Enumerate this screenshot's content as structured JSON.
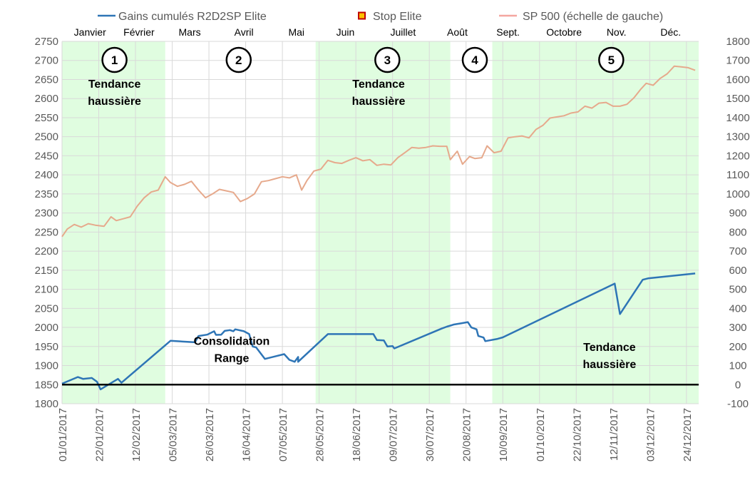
{
  "chart_data": {
    "type": "line",
    "legend": {
      "placement": "top",
      "items": [
        {
          "label": "Gains cumulés R2D2SP Elite",
          "color": "#2e75b6",
          "marker": "line"
        },
        {
          "label": "Stop Elite",
          "color": "#c00000",
          "marker": "square",
          "fill": "#ffc000"
        },
        {
          "label": "SP 500 (échelle de gauche)",
          "color": "#f4a6a0",
          "marker": "line"
        }
      ]
    },
    "y_left": {
      "min": 1800,
      "max": 2750,
      "ticks": [
        "1800",
        "1850",
        "1900",
        "1950",
        "2000",
        "2050",
        "2100",
        "2150",
        "2200",
        "2250",
        "2300",
        "2350",
        "2400",
        "2450",
        "2500",
        "2550",
        "2600",
        "2650",
        "2700",
        "2750"
      ]
    },
    "y_right": {
      "min": -100,
      "max": 1800,
      "ticks": [
        "-100",
        "0",
        "100",
        "200",
        "300",
        "400",
        "500",
        "600",
        "700",
        "800",
        "900",
        "1000",
        "1100",
        "1200",
        "1300",
        "1400",
        "1500",
        "1600",
        "1700",
        "1800"
      ]
    },
    "x_ticks": [
      "01/01/2017",
      "22/01/2017",
      "12/02/2017",
      "05/03/2017",
      "26/03/2017",
      "16/04/2017",
      "07/05/2017",
      "28/05/2017",
      "18/06/2017",
      "09/07/2017",
      "30/07/2017",
      "20/08/2017",
      "10/09/2017",
      "01/10/2017",
      "22/10/2017",
      "12/11/2017",
      "03/12/2017",
      "24/12/2017"
    ],
    "x_range": [
      "2017-01-01",
      "2017-12-31"
    ],
    "months": [
      {
        "label": "Janvier",
        "date": "2017-01-17"
      },
      {
        "label": "Février",
        "date": "2017-02-14"
      },
      {
        "label": "Mars",
        "date": "2017-03-15"
      },
      {
        "label": "Avril",
        "date": "2017-04-15"
      },
      {
        "label": "Mai",
        "date": "2017-05-15"
      },
      {
        "label": "Juin",
        "date": "2017-06-12"
      },
      {
        "label": "Juillet",
        "date": "2017-07-15"
      },
      {
        "label": "Août",
        "date": "2017-08-15"
      },
      {
        "label": "Sept.",
        "date": "2017-09-13"
      },
      {
        "label": "Octobre",
        "date": "2017-10-15"
      },
      {
        "label": "Nov.",
        "date": "2017-11-14"
      },
      {
        "label": "Déc.",
        "date": "2017-12-15"
      }
    ],
    "bands": [
      {
        "name": "1",
        "start": "2017-01-01",
        "end": "2017-03-01",
        "color": "#e0fde0"
      },
      {
        "name": "3",
        "start": "2017-05-26",
        "end": "2017-08-11",
        "color": "#e0fde0"
      },
      {
        "name": "5",
        "start": "2017-09-04",
        "end": "2017-12-31",
        "color": "#e0fde0"
      }
    ],
    "phases": [
      {
        "num": "1",
        "date": "2017-01-31"
      },
      {
        "num": "2",
        "date": "2017-04-12"
      },
      {
        "num": "3",
        "date": "2017-07-06"
      },
      {
        "num": "4",
        "date": "2017-08-25"
      },
      {
        "num": "5",
        "date": "2017-11-11"
      }
    ],
    "annotations": [
      {
        "lines": [
          "Tendance",
          "haussière"
        ],
        "date": "2017-01-31",
        "y": 2628
      },
      {
        "lines": [
          "Consolidation",
          "Range"
        ],
        "date": "2017-04-08",
        "y": 1954
      },
      {
        "lines": [
          "Tendance",
          "haussière"
        ],
        "date": "2017-07-01",
        "y": 2628
      },
      {
        "lines": [
          "Tendance",
          "haussière"
        ],
        "date": "2017-11-10",
        "y": 1938
      }
    ],
    "series": [
      {
        "name": "SP 500 (échelle de gauche)",
        "axis": "left",
        "color": "#e6a98c",
        "points": [
          [
            "2017-01-01",
            2238
          ],
          [
            "2017-01-04",
            2258
          ],
          [
            "2017-01-08",
            2270
          ],
          [
            "2017-01-12",
            2263
          ],
          [
            "2017-01-16",
            2272
          ],
          [
            "2017-01-20",
            2268
          ],
          [
            "2017-01-25",
            2265
          ],
          [
            "2017-01-29",
            2290
          ],
          [
            "2017-02-01",
            2280
          ],
          [
            "2017-02-05",
            2285
          ],
          [
            "2017-02-09",
            2290
          ],
          [
            "2017-02-13",
            2318
          ],
          [
            "2017-02-17",
            2340
          ],
          [
            "2017-02-21",
            2355
          ],
          [
            "2017-02-25",
            2360
          ],
          [
            "2017-03-01",
            2395
          ],
          [
            "2017-03-04",
            2380
          ],
          [
            "2017-03-08",
            2370
          ],
          [
            "2017-03-12",
            2375
          ],
          [
            "2017-03-16",
            2383
          ],
          [
            "2017-03-20",
            2360
          ],
          [
            "2017-03-24",
            2340
          ],
          [
            "2017-03-28",
            2350
          ],
          [
            "2017-04-01",
            2362
          ],
          [
            "2017-04-05",
            2358
          ],
          [
            "2017-04-09",
            2354
          ],
          [
            "2017-04-13",
            2330
          ],
          [
            "2017-04-17",
            2338
          ],
          [
            "2017-04-21",
            2350
          ],
          [
            "2017-04-25",
            2382
          ],
          [
            "2017-04-29",
            2385
          ],
          [
            "2017-05-03",
            2390
          ],
          [
            "2017-05-07",
            2395
          ],
          [
            "2017-05-11",
            2392
          ],
          [
            "2017-05-15",
            2400
          ],
          [
            "2017-05-18",
            2360
          ],
          [
            "2017-05-21",
            2385
          ],
          [
            "2017-05-25",
            2410
          ],
          [
            "2017-05-29",
            2415
          ],
          [
            "2017-06-02",
            2438
          ],
          [
            "2017-06-06",
            2432
          ],
          [
            "2017-06-10",
            2430
          ],
          [
            "2017-06-14",
            2438
          ],
          [
            "2017-06-18",
            2445
          ],
          [
            "2017-06-22",
            2437
          ],
          [
            "2017-06-26",
            2440
          ],
          [
            "2017-06-30",
            2425
          ],
          [
            "2017-07-04",
            2428
          ],
          [
            "2017-07-08",
            2426
          ],
          [
            "2017-07-12",
            2445
          ],
          [
            "2017-07-16",
            2458
          ],
          [
            "2017-07-20",
            2472
          ],
          [
            "2017-07-24",
            2470
          ],
          [
            "2017-07-28",
            2472
          ],
          [
            "2017-08-01",
            2476
          ],
          [
            "2017-08-05",
            2475
          ],
          [
            "2017-08-09",
            2475
          ],
          [
            "2017-08-11",
            2440
          ],
          [
            "2017-08-15",
            2462
          ],
          [
            "2017-08-18",
            2428
          ],
          [
            "2017-08-22",
            2448
          ],
          [
            "2017-08-25",
            2443
          ],
          [
            "2017-08-29",
            2445
          ],
          [
            "2017-09-01",
            2476
          ],
          [
            "2017-09-05",
            2458
          ],
          [
            "2017-09-09",
            2462
          ],
          [
            "2017-09-13",
            2497
          ],
          [
            "2017-09-17",
            2500
          ],
          [
            "2017-09-21",
            2502
          ],
          [
            "2017-09-25",
            2497
          ],
          [
            "2017-09-29",
            2519
          ],
          [
            "2017-10-03",
            2530
          ],
          [
            "2017-10-07",
            2549
          ],
          [
            "2017-10-11",
            2552
          ],
          [
            "2017-10-15",
            2555
          ],
          [
            "2017-10-19",
            2562
          ],
          [
            "2017-10-23",
            2565
          ],
          [
            "2017-10-27",
            2580
          ],
          [
            "2017-10-31",
            2575
          ],
          [
            "2017-11-04",
            2588
          ],
          [
            "2017-11-08",
            2590
          ],
          [
            "2017-11-12",
            2580
          ],
          [
            "2017-11-16",
            2580
          ],
          [
            "2017-11-20",
            2585
          ],
          [
            "2017-11-24",
            2602
          ],
          [
            "2017-11-28",
            2625
          ],
          [
            "2017-12-01",
            2640
          ],
          [
            "2017-12-05",
            2635
          ],
          [
            "2017-12-09",
            2653
          ],
          [
            "2017-12-13",
            2665
          ],
          [
            "2017-12-17",
            2685
          ],
          [
            "2017-12-21",
            2683
          ],
          [
            "2017-12-25",
            2681
          ],
          [
            "2017-12-29",
            2674
          ]
        ]
      },
      {
        "name": "Gains cumulés R2D2SP Elite",
        "axis": "right",
        "color": "#2e75b6",
        "points": [
          [
            "2017-01-01",
            5
          ],
          [
            "2017-01-10",
            40
          ],
          [
            "2017-01-13",
            30
          ],
          [
            "2017-01-18",
            35
          ],
          [
            "2017-01-21",
            15
          ],
          [
            "2017-01-23",
            -25
          ],
          [
            "2017-02-02",
            30
          ],
          [
            "2017-02-04",
            10
          ],
          [
            "2017-03-04",
            230
          ],
          [
            "2017-03-18",
            222
          ],
          [
            "2017-03-20",
            255
          ],
          [
            "2017-03-25",
            262
          ],
          [
            "2017-03-29",
            280
          ],
          [
            "2017-03-30",
            261
          ],
          [
            "2017-04-02",
            262
          ],
          [
            "2017-04-04",
            282
          ],
          [
            "2017-04-07",
            286
          ],
          [
            "2017-04-09",
            280
          ],
          [
            "2017-04-10",
            290
          ],
          [
            "2017-04-15",
            280
          ],
          [
            "2017-04-18",
            265
          ],
          [
            "2017-04-20",
            200
          ],
          [
            "2017-04-22",
            195
          ],
          [
            "2017-04-27",
            135
          ],
          [
            "2017-05-08",
            160
          ],
          [
            "2017-05-11",
            130
          ],
          [
            "2017-05-14",
            120
          ],
          [
            "2017-05-16",
            145
          ],
          [
            "2017-05-16",
            120
          ],
          [
            "2017-06-02",
            265
          ],
          [
            "2017-06-28",
            265
          ],
          [
            "2017-06-30",
            234
          ],
          [
            "2017-07-04",
            232
          ],
          [
            "2017-07-06",
            200
          ],
          [
            "2017-07-09",
            202
          ],
          [
            "2017-07-10",
            190
          ],
          [
            "2017-08-06",
            294
          ],
          [
            "2017-08-09",
            304
          ],
          [
            "2017-08-13",
            315
          ],
          [
            "2017-08-17",
            321
          ],
          [
            "2017-08-21",
            328
          ],
          [
            "2017-08-23",
            300
          ],
          [
            "2017-08-26",
            290
          ],
          [
            "2017-08-27",
            255
          ],
          [
            "2017-08-30",
            247
          ],
          [
            "2017-08-31",
            228
          ],
          [
            "2017-09-07",
            240
          ],
          [
            "2017-09-10",
            248
          ],
          [
            "2017-11-13",
            530
          ],
          [
            "2017-11-16",
            370
          ],
          [
            "2017-11-29",
            550
          ],
          [
            "2017-12-02",
            557
          ],
          [
            "2017-12-29",
            583
          ]
        ]
      },
      {
        "name": "Stop Elite",
        "axis": "right",
        "color": "#000000",
        "points": [
          [
            "2017-01-01",
            0
          ],
          [
            "2017-12-31",
            0
          ]
        ]
      }
    ]
  }
}
